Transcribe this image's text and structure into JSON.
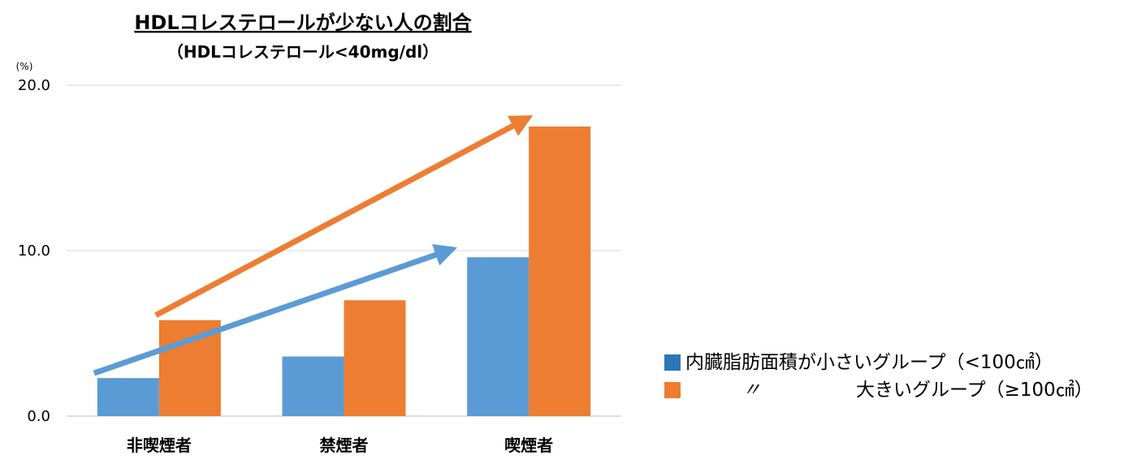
{
  "chart_data": {
    "type": "bar",
    "title": "HDLコレステロールが少ない人の割合",
    "subtitle": "（HDLコレステロール<40mg/dl）",
    "ylabel": "(%)",
    "xlabel": "",
    "ylim": [
      0,
      20
    ],
    "yticks": [
      0,
      10,
      20
    ],
    "ytick_labels": [
      "0.0",
      "10.0",
      "20.0"
    ],
    "grid": true,
    "legend_position": "right",
    "categories": [
      "非喫煙者",
      "禁煙者",
      "喫煙者"
    ],
    "series": [
      {
        "name": "内臓脂肪面積が小さいグループ（<100㎠）",
        "color": "#5B9BD5",
        "values": [
          2.3,
          3.6,
          9.6
        ]
      },
      {
        "name": "大きいグループ（≥100㎠）",
        "color": "#ED7D31",
        "values": [
          5.8,
          7.0,
          17.5
        ]
      }
    ],
    "annotations": [
      {
        "type": "trend-arrow",
        "series": 0,
        "color": "#5B9BD5"
      },
      {
        "type": "trend-arrow",
        "series": 1,
        "color": "#ED7D31"
      }
    ]
  },
  "legend": {
    "row1_text": "内臓脂肪面積が小さいグループ（<100㎠）",
    "row2_ditto": "〃",
    "row2_text": "大きいグループ（≥100㎠）"
  }
}
